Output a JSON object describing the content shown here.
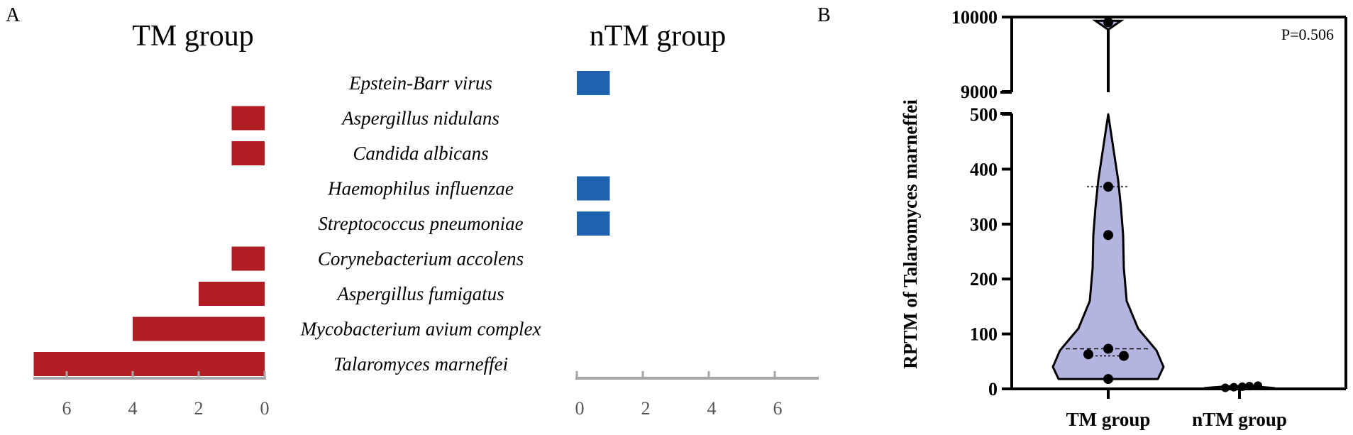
{
  "panel_labels": {
    "a": "A",
    "b": "B"
  },
  "chart_data": [
    {
      "type": "bar",
      "orientation": "horizontal-mirrored",
      "title_left": "TM group",
      "title_right": "nTM group",
      "categories": [
        "Epstein-Barr virus",
        "Aspergillus nidulans",
        "Candida albicans",
        "Haemophilus influenzae",
        "Streptococcus pneumoniae",
        "Corynebacterium accolens",
        "Aspergillus fumigatus",
        "Mycobacterium avium complex",
        "Talaromyces marneffei"
      ],
      "series": [
        {
          "name": "TM group",
          "color": "#b01e23",
          "values": [
            0,
            1,
            1,
            0,
            0,
            1,
            2,
            4,
            7
          ]
        },
        {
          "name": "nTM group",
          "color": "#1f63b0",
          "values": [
            1,
            0,
            0,
            1,
            1,
            0,
            0,
            0,
            0
          ]
        }
      ],
      "left_axis": {
        "ticks": [
          "6",
          "4",
          "2",
          "0"
        ],
        "tick_values": [
          6,
          4,
          2,
          0
        ],
        "range": [
          0,
          7
        ]
      },
      "right_axis": {
        "ticks": [
          "0",
          "2",
          "4",
          "6"
        ],
        "tick_values": [
          0,
          2,
          4,
          6
        ],
        "range": [
          0,
          7
        ]
      }
    },
    {
      "type": "violin",
      "ylabel": "RPTM of Talaromyces marneffei",
      "annotation": "P=0.506",
      "categories": [
        "TM group",
        "nTM group"
      ],
      "y_axis_lower": {
        "ticks": [
          "0",
          "100",
          "200",
          "300",
          "400",
          "500"
        ],
        "range": [
          0,
          500
        ]
      },
      "y_axis_upper": {
        "ticks": [
          "9000",
          "10000"
        ],
        "range": [
          9000,
          10000
        ]
      },
      "violin_color": "#b4b4e0",
      "points": {
        "TM group": [
          18,
          60,
          63,
          73,
          280,
          368,
          9930
        ],
        "nTM group": [
          2,
          3,
          4,
          5,
          6
        ]
      },
      "quartiles": {
        "TM group": {
          "q1": 60,
          "median": 73,
          "q3": 368
        }
      }
    }
  ]
}
